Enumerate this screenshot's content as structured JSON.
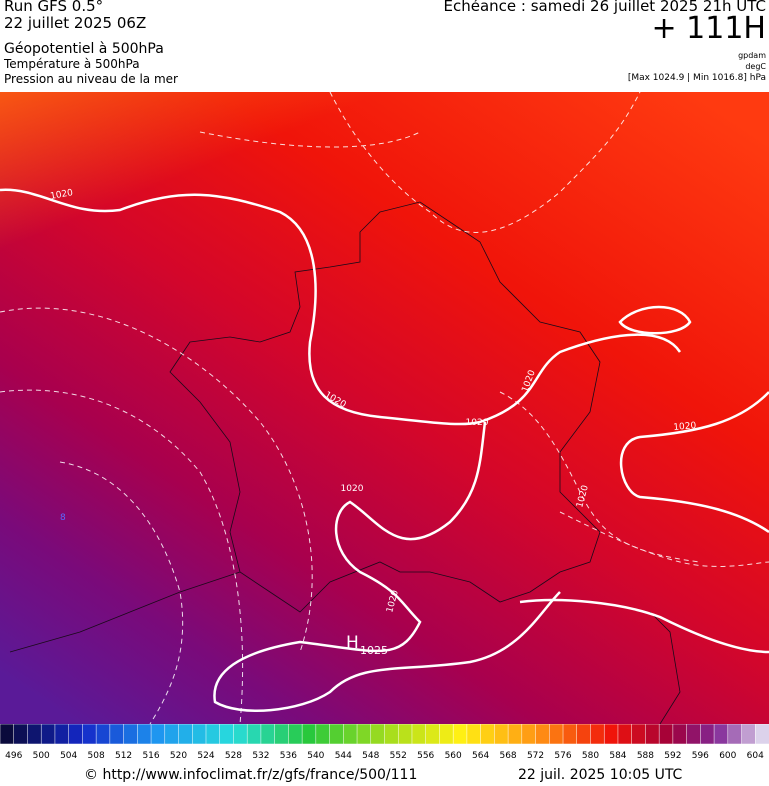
{
  "header": {
    "run": "Run GFS 0.5°",
    "date": "22 juillet 2025 06Z",
    "field1": "Géopotentiel à 500hPa",
    "field2": "Température à 500hPa",
    "field3": "Pression au niveau de la mer",
    "valid": "Echéance : samedi 26 juillet 2025 21h UTC",
    "lead": "+ 111H",
    "unit1": "gpdam",
    "unit2": "degC",
    "range": "[Max 1024.9 | Min 1016.8] hPa"
  },
  "map_labels": [
    "1020",
    "1020",
    "1020",
    "1020",
    "1020",
    "1020",
    "1020",
    "1020",
    "H",
    "1025",
    "8"
  ],
  "colorbar": {
    "labels": [
      496,
      500,
      504,
      508,
      512,
      516,
      520,
      524,
      528,
      532,
      536,
      540,
      544,
      548,
      552,
      556,
      560,
      564,
      568,
      572,
      576,
      580,
      584,
      588,
      592,
      596,
      600,
      604
    ]
  },
  "footer": {
    "source": "© http://www.infoclimat.fr/z/gfs/france/500/111",
    "generated": "22 juil. 2025 10:05 UTC"
  }
}
